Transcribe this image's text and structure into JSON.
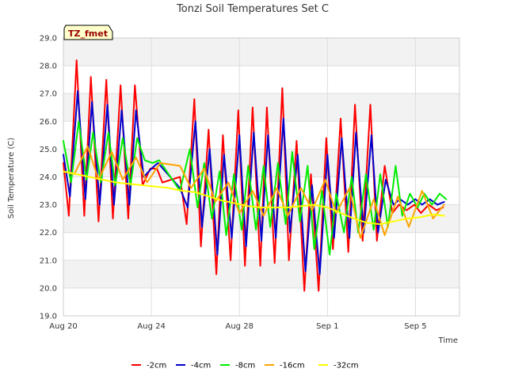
{
  "chart_data": {
    "type": "line",
    "title": "Tonzi Soil Temperatures Set C",
    "xlabel": "Time",
    "ylabel": "Soil Temperature (C)",
    "badge": "TZ_fmet",
    "xlim": [
      0,
      18.0
    ],
    "ylim": [
      19.0,
      29.0
    ],
    "x_ticks": [
      {
        "value": 0,
        "label": "Aug 20"
      },
      {
        "value": 4,
        "label": "Aug 24"
      },
      {
        "value": 8,
        "label": "Aug 28"
      },
      {
        "value": 12,
        "label": "Sep 1"
      },
      {
        "value": 16,
        "label": "Sep 5"
      }
    ],
    "y_ticks": [
      {
        "value": 19,
        "label": "19.0"
      },
      {
        "value": 20,
        "label": "20.0"
      },
      {
        "value": 21,
        "label": "21.0"
      },
      {
        "value": 22,
        "label": "22.0"
      },
      {
        "value": 23,
        "label": "23.0"
      },
      {
        "value": 24,
        "label": "24.0"
      },
      {
        "value": 25,
        "label": "25.0"
      },
      {
        "value": 26,
        "label": "26.0"
      },
      {
        "value": 27,
        "label": "27.0"
      },
      {
        "value": 28,
        "label": "28.0"
      },
      {
        "value": 29,
        "label": "29.0"
      }
    ],
    "grid": true,
    "legend_position": "bottom",
    "series": [
      {
        "name": "-2cm",
        "color": "#ff0000",
        "x": [
          0,
          0.25,
          0.6,
          0.95,
          1.25,
          1.6,
          1.95,
          2.25,
          2.6,
          2.95,
          3.25,
          3.6,
          3.95,
          4.25,
          4.5,
          5.3,
          5.6,
          5.95,
          6.25,
          6.6,
          6.95,
          7.25,
          7.6,
          7.95,
          8.25,
          8.6,
          8.95,
          9.25,
          9.6,
          9.95,
          10.25,
          10.6,
          10.95,
          11.25,
          11.6,
          11.95,
          12.25,
          12.6,
          12.95,
          13.25,
          13.6,
          13.95,
          14.25,
          14.6,
          14.95,
          15.25,
          15.6,
          15.95,
          16.25,
          16.6,
          16.95,
          17.25
        ],
        "y": [
          24.5,
          22.6,
          28.2,
          22.6,
          27.6,
          22.4,
          27.5,
          22.5,
          27.3,
          22.5,
          27.3,
          23.7,
          24.3,
          24.3,
          23.8,
          24.0,
          22.3,
          26.8,
          21.5,
          25.7,
          20.5,
          25.5,
          21.0,
          26.4,
          20.8,
          26.5,
          20.8,
          26.5,
          20.9,
          27.2,
          21.0,
          25.3,
          19.9,
          24.1,
          19.9,
          25.4,
          21.4,
          26.1,
          21.3,
          26.6,
          21.7,
          26.6,
          21.7,
          24.4,
          22.7,
          23.0,
          22.8,
          23.0,
          22.7,
          23.0,
          22.8,
          22.9
        ]
      },
      {
        "name": "-4cm",
        "color": "#0000cc",
        "x": [
          0,
          0.3,
          0.65,
          1.0,
          1.3,
          1.65,
          2.0,
          2.3,
          2.65,
          3.0,
          3.3,
          3.65,
          4.0,
          4.3,
          5.3,
          5.65,
          6.0,
          6.3,
          6.65,
          7.0,
          7.3,
          7.65,
          8.0,
          8.3,
          8.65,
          9.0,
          9.3,
          9.65,
          10.0,
          10.3,
          10.65,
          11.0,
          11.3,
          11.65,
          12.0,
          12.3,
          12.65,
          13.0,
          13.3,
          13.65,
          14.0,
          14.3,
          14.65,
          15.0,
          15.3,
          15.65,
          16.0,
          16.3,
          16.65,
          17.0,
          17.3
        ],
        "y": [
          24.8,
          23.3,
          27.1,
          23.2,
          26.7,
          23.0,
          26.6,
          23.0,
          26.4,
          23.0,
          26.4,
          24.0,
          24.3,
          24.5,
          23.6,
          22.9,
          26.0,
          22.2,
          25.0,
          21.2,
          24.8,
          21.8,
          25.5,
          21.5,
          25.6,
          21.7,
          25.5,
          21.8,
          26.1,
          22.0,
          24.8,
          20.6,
          23.7,
          20.5,
          24.8,
          21.8,
          25.4,
          21.8,
          25.6,
          22.0,
          25.5,
          22.0,
          23.9,
          23.0,
          23.2,
          23.0,
          23.2,
          23.0,
          23.2,
          23.0,
          23.1
        ]
      },
      {
        "name": "-8cm",
        "color": "#00ee00",
        "x": [
          0,
          0.35,
          0.7,
          1.05,
          1.35,
          1.7,
          2.05,
          2.35,
          2.7,
          3.05,
          3.35,
          3.7,
          4.05,
          4.35,
          5.3,
          5.75,
          6.1,
          6.4,
          6.75,
          7.1,
          7.4,
          7.75,
          8.1,
          8.4,
          8.75,
          9.1,
          9.4,
          9.75,
          10.1,
          10.4,
          10.75,
          11.1,
          11.4,
          11.75,
          12.1,
          12.4,
          12.75,
          13.1,
          13.4,
          13.75,
          14.1,
          14.4,
          14.75,
          15.1,
          15.4,
          15.75,
          16.1,
          16.4,
          16.75,
          17.1,
          17.4
        ],
        "y": [
          25.3,
          23.8,
          26.0,
          23.9,
          25.6,
          23.8,
          25.6,
          23.7,
          25.4,
          23.7,
          25.4,
          24.6,
          24.5,
          24.6,
          23.5,
          25.0,
          22.9,
          24.5,
          22.5,
          24.2,
          21.9,
          24.1,
          22.1,
          24.4,
          22.1,
          24.4,
          22.2,
          24.5,
          22.3,
          24.9,
          22.4,
          24.4,
          21.4,
          23.5,
          21.2,
          23.4,
          22.0,
          24.0,
          22.0,
          24.1,
          22.1,
          24.1,
          22.2,
          24.4,
          22.6,
          23.4,
          22.9,
          23.4,
          23.0,
          23.4,
          23.2
        ]
      },
      {
        "name": "-16cm",
        "color": "#ffa500",
        "x": [
          0,
          0.5,
          1.1,
          1.6,
          2.2,
          2.7,
          3.3,
          3.8,
          4.4,
          5.3,
          5.8,
          6.4,
          6.9,
          7.5,
          8.0,
          8.6,
          9.1,
          9.7,
          10.2,
          10.8,
          11.3,
          11.9,
          12.4,
          13.0,
          13.5,
          14.1,
          14.6,
          15.2,
          15.7,
          16.3,
          16.8,
          17.3
        ],
        "y": [
          24.2,
          24.1,
          25.1,
          23.9,
          24.9,
          23.9,
          24.7,
          23.8,
          24.5,
          24.4,
          23.6,
          24.3,
          23.1,
          23.8,
          22.7,
          23.5,
          22.6,
          23.6,
          22.6,
          23.6,
          22.8,
          23.9,
          22.7,
          23.6,
          21.8,
          23.2,
          21.9,
          23.3,
          22.2,
          23.5,
          22.5,
          23.0
        ]
      },
      {
        "name": "-32cm",
        "color": "#ffff00",
        "x": [
          0,
          0.6,
          1.2,
          1.8,
          2.4,
          3.0,
          3.6,
          4.2,
          4.8,
          5.4,
          6.0,
          6.6,
          7.2,
          7.8,
          8.4,
          9.0,
          9.6,
          10.2,
          10.8,
          11.4,
          12.0,
          12.6,
          13.2,
          13.8,
          14.4,
          15.0,
          15.6,
          16.2,
          16.8,
          17.3
        ],
        "y": [
          24.2,
          24.1,
          24.0,
          23.9,
          23.8,
          23.75,
          23.7,
          23.65,
          23.6,
          23.5,
          23.45,
          23.3,
          23.15,
          23.05,
          22.95,
          22.9,
          22.9,
          22.9,
          22.95,
          23.0,
          22.9,
          22.7,
          22.5,
          22.35,
          22.3,
          22.4,
          22.5,
          22.55,
          22.65,
          22.6
        ]
      }
    ]
  }
}
